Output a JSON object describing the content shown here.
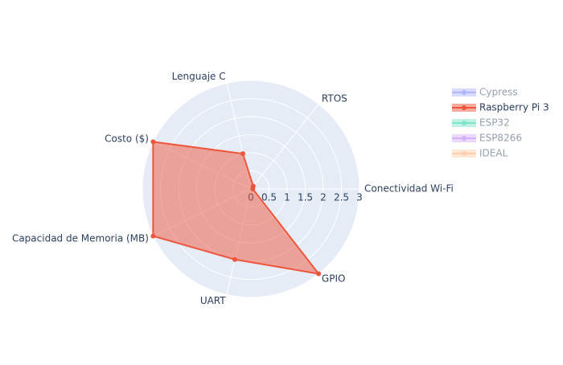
{
  "chart_data": {
    "type": "radar",
    "categories": [
      "Conectividad Wi-Fi",
      "RTOS",
      "Lenguaje C",
      "Costo ($)",
      "Capacidad de Memoria (MB)",
      "UART",
      "GPIO"
    ],
    "rlim": [
      0,
      3
    ],
    "rticks": [
      0,
      0.5,
      1,
      1.5,
      2,
      2.5,
      3
    ],
    "grid": true,
    "legend": "right",
    "series": [
      {
        "name": "Cypress",
        "color": "#636efa",
        "visible": false
      },
      {
        "name": "Raspberry Pi 3",
        "color": "#EF553B",
        "visible": true,
        "values": [
          0.05,
          0.1,
          1,
          3,
          3,
          2,
          3
        ]
      },
      {
        "name": "ESP32",
        "color": "#00cc96",
        "visible": false
      },
      {
        "name": "ESP8266",
        "color": "#ab63fa",
        "visible": false
      },
      {
        "name": "IDEAL",
        "color": "#FFA15A",
        "visible": false
      }
    ]
  }
}
